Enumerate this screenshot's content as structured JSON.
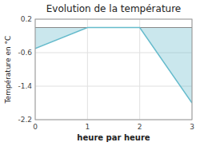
{
  "chart_data": {
    "type": "area",
    "title": "Evolution de la température",
    "y_label": "Température en °C",
    "x_label": "heure par heure",
    "x": [
      0,
      1,
      2,
      3
    ],
    "values": [
      -0.5,
      0.0,
      0.0,
      -1.8
    ],
    "color": "#66bbcc",
    "xlim": [
      0,
      3
    ],
    "ylim": [
      -2.2,
      0.2
    ],
    "xticks": [
      0,
      1,
      2,
      3
    ],
    "yticks": [
      0.2,
      -0.6,
      -1.4,
      -2.2
    ],
    "grid": true
  }
}
